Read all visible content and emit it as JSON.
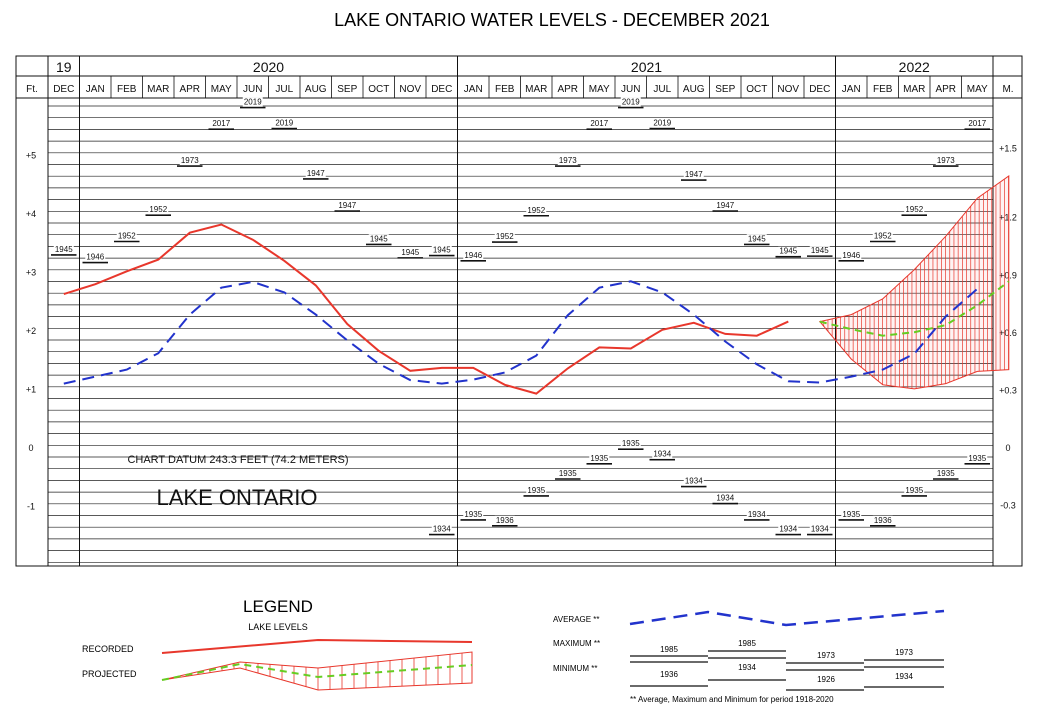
{
  "chart_data": {
    "type": "line",
    "title": "LAKE ONTARIO WATER LEVELS - DECEMBER 2021",
    "year_row": [
      {
        "label": "19",
        "from": 0,
        "to": 0
      },
      {
        "label": "2020",
        "from": 1,
        "to": 12
      },
      {
        "label": "2021",
        "from": 13,
        "to": 24
      },
      {
        "label": "2022",
        "from": 25,
        "to": 29
      }
    ],
    "months": [
      "DEC",
      "JAN",
      "FEB",
      "MAR",
      "APR",
      "MAY",
      "JUN",
      "JUL",
      "AUG",
      "SEP",
      "OCT",
      "NOV",
      "DEC",
      "JAN",
      "FEB",
      "MAR",
      "APR",
      "MAY",
      "JUN",
      "JUL",
      "AUG",
      "SEP",
      "OCT",
      "NOV",
      "DEC",
      "JAN",
      "FEB",
      "MAR",
      "APR",
      "MAY"
    ],
    "left_axis": {
      "title": "Ft.",
      "ticks": [
        {
          "v": 5,
          "label": "+5"
        },
        {
          "v": 4,
          "label": "+4"
        },
        {
          "v": 3,
          "label": "+3"
        },
        {
          "v": 2,
          "label": "+2"
        },
        {
          "v": 1,
          "label": "+1"
        },
        {
          "v": 0,
          "label": "0"
        },
        {
          "v": -1,
          "label": "-1"
        }
      ]
    },
    "right_axis": {
      "title": "M.",
      "ticks": [
        {
          "v": 5.12,
          "label": "+1.5"
        },
        {
          "v": 3.94,
          "label": "+1.2"
        },
        {
          "v": 2.95,
          "label": "+0.9"
        },
        {
          "v": 1.97,
          "label": "+0.6"
        },
        {
          "v": 0.98,
          "label": "+0.3"
        },
        {
          "v": 0,
          "label": "0"
        },
        {
          "v": -0.98,
          "label": "-0.3"
        }
      ]
    },
    "ylim": [
      -1.9,
      6.0
    ],
    "series": [
      {
        "name": "RECORDED",
        "color": "#e8372c",
        "values": [
          2.63,
          2.8,
          3.02,
          3.22,
          3.68,
          3.82,
          3.56,
          3.2,
          2.78,
          2.12,
          1.66,
          1.32,
          1.37,
          1.37,
          1.08,
          0.93,
          1.36,
          1.72,
          1.7,
          2.02,
          2.14,
          1.95,
          1.92,
          2.16
        ]
      },
      {
        "name": "AVERAGE",
        "color": "#2233cc",
        "values": [
          1.1,
          1.22,
          1.34,
          1.62,
          2.28,
          2.74,
          2.84,
          2.66,
          2.28,
          1.84,
          1.44,
          1.16,
          1.1,
          1.17,
          1.29,
          1.58,
          2.27,
          2.74,
          2.85,
          2.66,
          2.28,
          1.82,
          1.43,
          1.14,
          1.12,
          1.22,
          1.34,
          1.61,
          2.25,
          2.72
        ]
      },
      {
        "name": "PROJECTED",
        "color": "#66cc22",
        "start": 24,
        "values": [
          2.16,
          2.03,
          1.92,
          1.98,
          2.1,
          2.44,
          2.85
        ]
      }
    ],
    "projected_band": {
      "start": 24,
      "upper": [
        2.16,
        2.28,
        2.55,
        3.05,
        3.62,
        4.27,
        4.65
      ],
      "lower": [
        2.16,
        1.52,
        1.08,
        1.01,
        1.1,
        1.31,
        1.34
      ]
    },
    "max_records": [
      [
        0,
        3.3,
        "1945"
      ],
      [
        1,
        3.17,
        "1946"
      ],
      [
        2,
        3.53,
        "1952"
      ],
      [
        3,
        3.98,
        "1952"
      ],
      [
        4,
        4.82,
        "1973"
      ],
      [
        5,
        5.45,
        "2017"
      ],
      [
        6,
        5.82,
        "2019"
      ],
      [
        7,
        5.46,
        "2019"
      ],
      [
        8,
        4.6,
        "1947"
      ],
      [
        9,
        4.05,
        "1947"
      ],
      [
        10,
        3.48,
        "1945"
      ],
      [
        11,
        3.25,
        "1945"
      ],
      [
        12,
        3.29,
        "1945"
      ],
      [
        13,
        3.2,
        "1946"
      ],
      [
        14,
        3.52,
        "1952"
      ],
      [
        15,
        3.97,
        "1952"
      ],
      [
        16,
        4.82,
        "1973"
      ],
      [
        17,
        5.45,
        "2017"
      ],
      [
        18,
        5.82,
        "2019"
      ],
      [
        19,
        5.46,
        "2019"
      ],
      [
        20,
        4.58,
        "1947"
      ],
      [
        21,
        4.05,
        "1947"
      ],
      [
        22,
        3.48,
        "1945"
      ],
      [
        23,
        3.27,
        "1945"
      ],
      [
        24,
        3.28,
        "1945"
      ],
      [
        25,
        3.2,
        "1946"
      ],
      [
        26,
        3.53,
        "1952"
      ],
      [
        27,
        3.98,
        "1952"
      ],
      [
        28,
        4.82,
        "1973"
      ],
      [
        29,
        5.45,
        "2017"
      ]
    ],
    "min_records": [
      [
        12,
        -1.48,
        "1934"
      ],
      [
        13,
        -1.23,
        "1935"
      ],
      [
        14,
        -1.33,
        "1936"
      ],
      [
        15,
        -0.82,
        "1935"
      ],
      [
        16,
        -0.53,
        "1935"
      ],
      [
        17,
        -0.27,
        "1935"
      ],
      [
        18,
        -0.02,
        "1935"
      ],
      [
        19,
        -0.2,
        "1934"
      ],
      [
        20,
        -0.66,
        "1934"
      ],
      [
        21,
        -0.95,
        "1934"
      ],
      [
        22,
        -1.23,
        "1934"
      ],
      [
        23,
        -1.48,
        "1934"
      ],
      [
        24,
        -1.48,
        "1934"
      ],
      [
        25,
        -1.23,
        "1935"
      ],
      [
        26,
        -1.33,
        "1936"
      ],
      [
        27,
        -0.82,
        "1935"
      ],
      [
        28,
        -0.53,
        "1935"
      ],
      [
        29,
        -0.27,
        "1935"
      ]
    ],
    "annotations": {
      "datum": "CHART DATUM  243.3 FEET (74.2 METERS)",
      "lake": "LAKE ONTARIO"
    },
    "grid": true
  },
  "legend": {
    "title": "LEGEND",
    "subtitle": "LAKE LEVELS",
    "recorded_label": "RECORDED",
    "projected_label": "PROJECTED",
    "average_label": "AVERAGE **",
    "maximum_label": "MAXIMUM **",
    "minimum_label": "MINIMUM **",
    "max_years": [
      "1985",
      "1985",
      "1973",
      "1973"
    ],
    "min_years": [
      "1936",
      "1934",
      "1926",
      "1934"
    ],
    "footnote": "** Average, Maximum and Minimum for period 1918-2020"
  }
}
